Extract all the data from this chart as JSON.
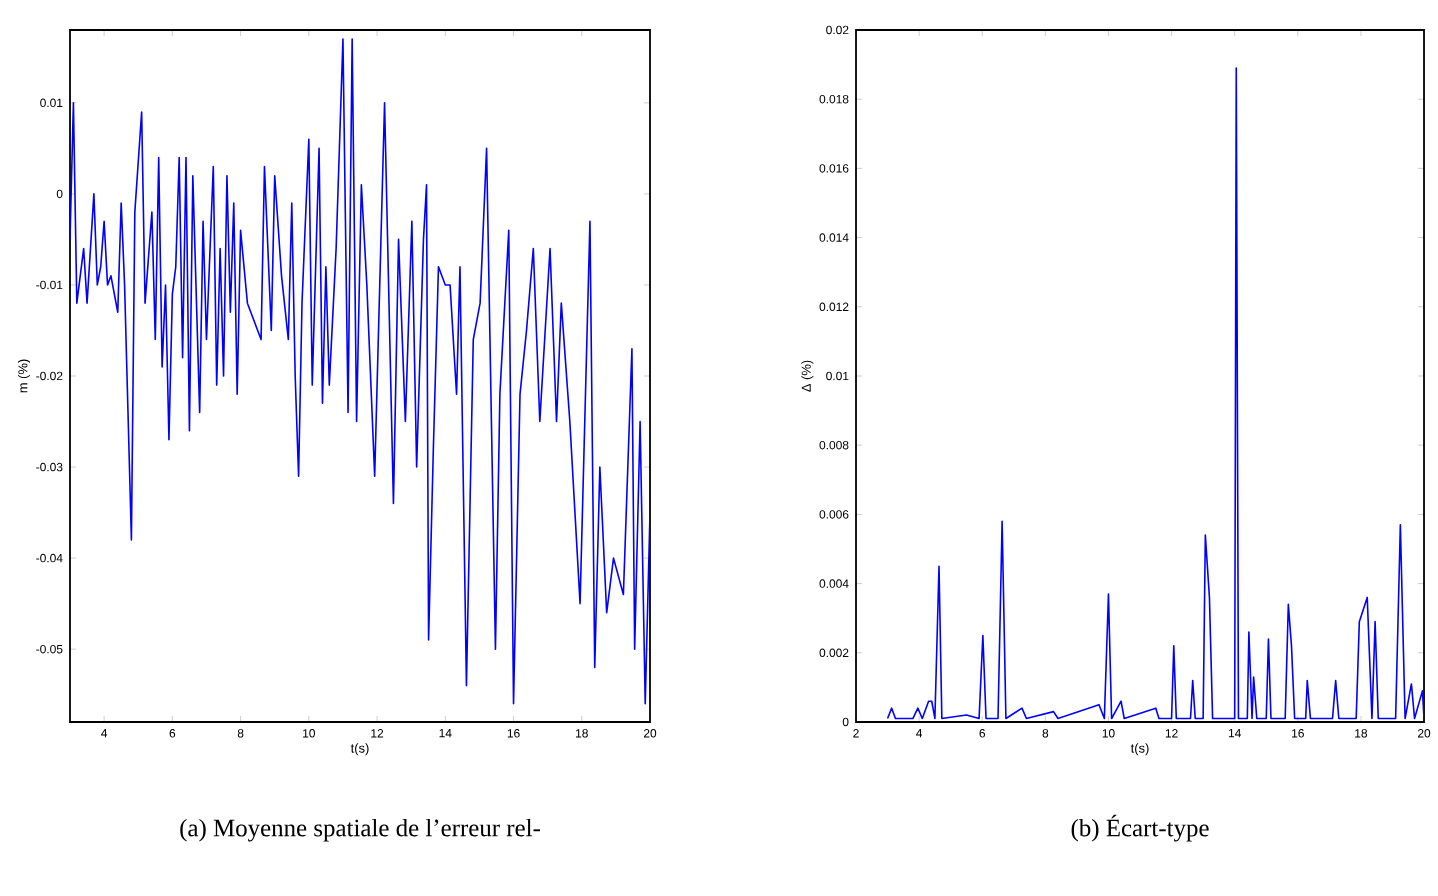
{
  "chart_data": [
    {
      "type": "line",
      "xlabel": "t(s)",
      "ylabel": "m (%)",
      "xlim": [
        3,
        20
      ],
      "ylim": [
        -0.058,
        0.018
      ],
      "xticks": [
        4,
        6,
        8,
        10,
        12,
        14,
        16,
        18,
        20
      ],
      "yticks": [
        -0.05,
        -0.04,
        -0.03,
        -0.02,
        -0.01,
        0,
        0.01
      ],
      "annotations": [
        "(a) Moyenne spatiale de l’erreur rel-"
      ],
      "series": [
        {
          "color": "#0000ff",
          "x": [
            3.0,
            3.1,
            3.2,
            3.4,
            3.5,
            3.7,
            3.8,
            3.9,
            4.0,
            4.1,
            4.2,
            4.4,
            4.5,
            4.6,
            4.7,
            4.8,
            4.9,
            5.1,
            5.2,
            5.4,
            5.5,
            5.6,
            5.7,
            5.8,
            5.9,
            6.0,
            6.1,
            6.2,
            6.3,
            6.4,
            6.5,
            6.6,
            6.8,
            6.9,
            7.0,
            7.2,
            7.3,
            7.4,
            7.5,
            7.6,
            7.7,
            7.8,
            7.9,
            8.0,
            8.2,
            8.4,
            8.6,
            8.7,
            8.9,
            9.0,
            9.2,
            9.4,
            9.5,
            9.6,
            9.7,
            9.8,
            10.0,
            10.1,
            10.3,
            10.4,
            10.5,
            10.6,
            10.8,
            11.0,
            11.15,
            11.27,
            11.4,
            11.54,
            11.7,
            11.93,
            12.22,
            12.48,
            12.63,
            12.83,
            13.02,
            13.16,
            13.36,
            13.45,
            13.51,
            13.65,
            13.8,
            14.0,
            14.14,
            14.33,
            14.43,
            14.62,
            14.82,
            15.02,
            15.21,
            15.47,
            15.6,
            15.86,
            16.0,
            16.19,
            16.38,
            16.58,
            16.77,
            17.07,
            17.26,
            17.4,
            17.65,
            17.95,
            18.24,
            18.38,
            18.53,
            18.73,
            18.93,
            19.22,
            19.47,
            19.55,
            19.71,
            19.86,
            20.0
          ],
          "values": [
            -0.005,
            0.01,
            -0.012,
            -0.006,
            -0.012,
            0.0,
            -0.01,
            -0.008,
            -0.003,
            -0.01,
            -0.009,
            -0.013,
            -0.001,
            -0.01,
            null,
            -0.038,
            -0.002,
            0.009,
            -0.012,
            -0.002,
            -0.016,
            0.004,
            -0.019,
            -0.01,
            -0.027,
            -0.011,
            -0.008,
            0.004,
            -0.018,
            0.004,
            -0.026,
            0.002,
            -0.024,
            -0.003,
            -0.016,
            0.003,
            -0.021,
            -0.006,
            -0.02,
            0.002,
            -0.013,
            -0.001,
            -0.022,
            -0.004,
            -0.012,
            null,
            -0.016,
            0.003,
            -0.015,
            0.002,
            -0.009,
            -0.016,
            -0.001,
            -0.02,
            -0.031,
            -0.012,
            0.006,
            -0.021,
            0.005,
            -0.023,
            -0.008,
            -0.021,
            -0.006,
            0.017,
            -0.024,
            0.017,
            -0.025,
            0.001,
            -0.01,
            -0.031,
            0.01,
            -0.034,
            -0.005,
            -0.025,
            -0.003,
            -0.03,
            -0.005,
            0.001,
            -0.049,
            -0.028,
            -0.008,
            -0.01,
            -0.01,
            -0.022,
            -0.008,
            -0.054,
            -0.016,
            -0.012,
            0.005,
            -0.05,
            -0.022,
            -0.004,
            -0.056,
            -0.022,
            -0.015,
            -0.006,
            -0.025,
            -0.006,
            -0.025,
            -0.012,
            -0.025,
            -0.045,
            -0.003,
            -0.052,
            -0.03,
            -0.046,
            -0.04,
            -0.044,
            -0.017,
            -0.05,
            -0.025,
            -0.056,
            -0.035
          ]
        }
      ]
    },
    {
      "type": "line",
      "xlabel": "t(s)",
      "ylabel": "Δ (%)",
      "xlim": [
        2,
        20
      ],
      "ylim": [
        0,
        0.02
      ],
      "xticks": [
        2,
        4,
        6,
        8,
        10,
        12,
        14,
        16,
        18,
        20
      ],
      "yticks": [
        0,
        0.002,
        0.004,
        0.006,
        0.008,
        0.01,
        0.012,
        0.014,
        0.016,
        0.018,
        0.02
      ],
      "annotations": [
        "(b) Écart-type"
      ],
      "series": [
        {
          "color": "#0000ff",
          "x": [
            3.0,
            3.13,
            3.25,
            3.8,
            3.96,
            4.1,
            4.3,
            4.4,
            4.5,
            4.63,
            4.72,
            5.5,
            5.9,
            6.02,
            6.12,
            6.5,
            6.63,
            6.75,
            7.26,
            7.4,
            8.26,
            8.4,
            9.7,
            9.87,
            10.0,
            10.1,
            10.4,
            10.5,
            11.5,
            11.6,
            12.0,
            12.07,
            12.15,
            12.6,
            12.67,
            12.75,
            13.0,
            13.07,
            13.2,
            13.3,
            13.8,
            14.0,
            14.05,
            14.12,
            14.4,
            14.45,
            14.55,
            14.6,
            14.7,
            15.0,
            15.07,
            15.15,
            15.6,
            15.7,
            15.8,
            15.9,
            16.25,
            16.3,
            16.4,
            17.1,
            17.2,
            17.3,
            17.85,
            17.95,
            18.2,
            18.35,
            18.45,
            18.55,
            19.1,
            19.25,
            19.4,
            19.6,
            19.7,
            19.95,
            20.0
          ],
          "values": [
            0.0001,
            0.0004,
            0.0001,
            0.0001,
            0.0004,
            0.0001,
            0.0006,
            0.0006,
            0.0001,
            0.0045,
            0.0001,
            0.0002,
            0.0001,
            0.0025,
            0.0001,
            0.0001,
            0.0058,
            0.0001,
            0.0004,
            0.0001,
            0.0003,
            0.0001,
            0.0005,
            0.0001,
            0.0037,
            0.0001,
            0.0006,
            0.0001,
            0.0004,
            0.0001,
            0.0001,
            0.0022,
            0.0001,
            0.0001,
            0.0012,
            0.0001,
            0.0001,
            0.0054,
            0.0036,
            0.0001,
            0.0001,
            0.0001,
            0.0189,
            0.0001,
            0.0001,
            0.0026,
            0.0001,
            0.0013,
            0.0001,
            0.0001,
            0.0024,
            0.0001,
            0.0001,
            0.0034,
            0.0022,
            0.0001,
            0.0001,
            0.0012,
            0.0001,
            0.0001,
            0.0012,
            0.0001,
            0.0001,
            0.0029,
            0.0036,
            0.0001,
            0.0029,
            0.0001,
            0.0001,
            0.0057,
            0.0001,
            0.0011,
            0.0001,
            0.0009,
            0.0001
          ]
        }
      ]
    }
  ]
}
